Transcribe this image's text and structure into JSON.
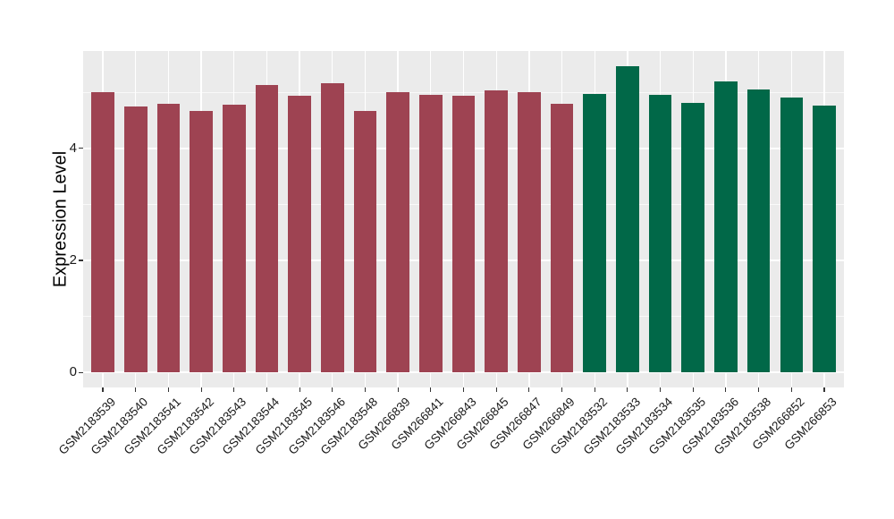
{
  "chart_data": {
    "type": "bar",
    "title": "",
    "xlabel": "",
    "ylabel": "Expression Level",
    "ylim": [
      -0.27,
      5.74
    ],
    "yticks_major": [
      0,
      2,
      4
    ],
    "yticks_minor": [
      1,
      3,
      5
    ],
    "grid": true,
    "legend_position": "none",
    "panel_background": "#EBEBEB",
    "gridline_color": "#FFFFFF",
    "axis_text_color": "#1a1a1a",
    "x_label_rotation_deg": 45,
    "group_colors": {
      "group1": "#9E4352",
      "group2": "#016848"
    },
    "bars": [
      {
        "label": "GSM2183539",
        "value": 5.0,
        "group": "group1"
      },
      {
        "label": "GSM2183540",
        "value": 4.75,
        "group": "group1"
      },
      {
        "label": "GSM2183541",
        "value": 4.79,
        "group": "group1"
      },
      {
        "label": "GSM2183542",
        "value": 4.67,
        "group": "group1"
      },
      {
        "label": "GSM2183543",
        "value": 4.78,
        "group": "group1"
      },
      {
        "label": "GSM2183544",
        "value": 5.14,
        "group": "group1"
      },
      {
        "label": "GSM2183545",
        "value": 4.94,
        "group": "group1"
      },
      {
        "label": "GSM2183546",
        "value": 5.16,
        "group": "group1"
      },
      {
        "label": "GSM2183548",
        "value": 4.67,
        "group": "group1"
      },
      {
        "label": "GSM266839",
        "value": 5.0,
        "group": "group1"
      },
      {
        "label": "GSM266841",
        "value": 4.96,
        "group": "group1"
      },
      {
        "label": "GSM266843",
        "value": 4.94,
        "group": "group1"
      },
      {
        "label": "GSM266845",
        "value": 5.03,
        "group": "group1"
      },
      {
        "label": "GSM266847",
        "value": 5.01,
        "group": "group1"
      },
      {
        "label": "GSM266849",
        "value": 4.79,
        "group": "group1"
      },
      {
        "label": "GSM2183532",
        "value": 4.98,
        "group": "group2"
      },
      {
        "label": "GSM2183533",
        "value": 5.47,
        "group": "group2"
      },
      {
        "label": "GSM2183534",
        "value": 4.96,
        "group": "group2"
      },
      {
        "label": "GSM2183535",
        "value": 4.81,
        "group": "group2"
      },
      {
        "label": "GSM2183536",
        "value": 5.19,
        "group": "group2"
      },
      {
        "label": "GSM2183538",
        "value": 5.06,
        "group": "group2"
      },
      {
        "label": "GSM266852",
        "value": 4.91,
        "group": "group2"
      },
      {
        "label": "GSM266853",
        "value": 4.76,
        "group": "group2"
      }
    ]
  }
}
